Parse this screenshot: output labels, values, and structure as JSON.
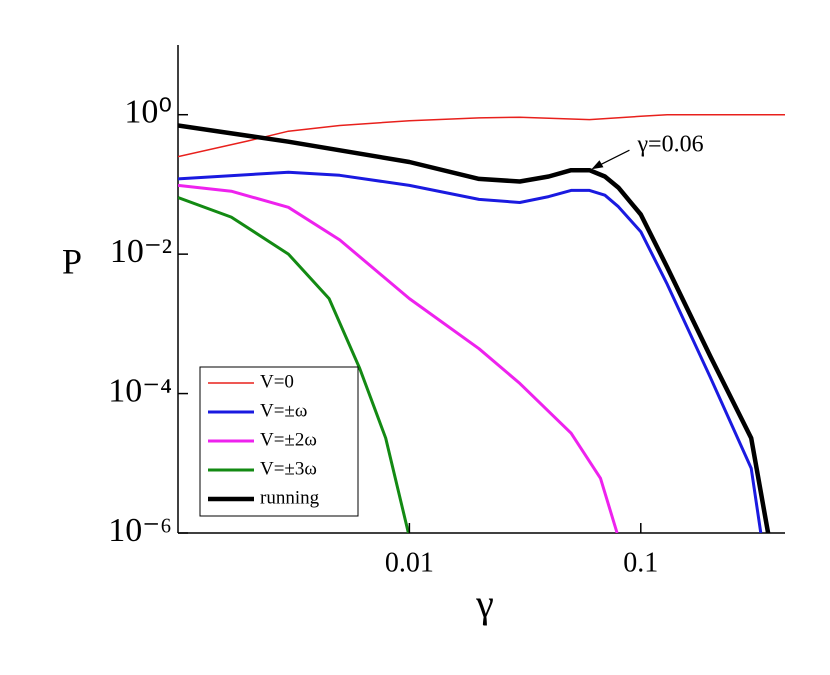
{
  "chart_data": {
    "type": "line",
    "x_label": "γ",
    "y_label": "P",
    "xscale": "log",
    "yscale": "log",
    "xlim": [
      0.001,
      0.42
    ],
    "ylim": [
      1e-06,
      10
    ],
    "xticks": [
      0.01,
      0.1
    ],
    "yticks": [
      {
        "value": 1,
        "label": "10⁰"
      },
      {
        "value": 0.01,
        "label": "10⁻²"
      },
      {
        "value": 0.0001,
        "label": "10⁻⁴"
      },
      {
        "value": 1e-06,
        "label": "10⁻⁶"
      }
    ],
    "legend": "lower left",
    "series": [
      {
        "name": "V=0",
        "color": "#e8201c",
        "width": 1.5,
        "x": [
          0.001,
          0.002,
          0.003,
          0.005,
          0.01,
          0.02,
          0.03,
          0.06,
          0.1,
          0.13,
          0.42
        ],
        "values": [
          0.25,
          0.42,
          0.58,
          0.7,
          0.82,
          0.9,
          0.92,
          0.85,
          0.95,
          1.0,
          1.0
        ]
      },
      {
        "name": "V=±ω",
        "color": "#1a1ae0",
        "width": 3,
        "x": [
          0.001,
          0.003,
          0.005,
          0.01,
          0.02,
          0.03,
          0.04,
          0.05,
          0.06,
          0.07,
          0.08,
          0.1,
          0.13,
          0.2,
          0.3,
          0.33
        ],
        "values": [
          0.12,
          0.15,
          0.135,
          0.097,
          0.061,
          0.055,
          0.067,
          0.082,
          0.082,
          0.07,
          0.048,
          0.021,
          0.0037,
          0.00017,
          8.5e-06,
          1e-06
        ]
      },
      {
        "name": "V=±2ω",
        "color": "#ee22ee",
        "width": 3,
        "x": [
          0.001,
          0.0017,
          0.003,
          0.005,
          0.01,
          0.02,
          0.03,
          0.05,
          0.067,
          0.079
        ],
        "values": [
          0.097,
          0.08,
          0.047,
          0.016,
          0.0023,
          0.00044,
          0.00014,
          2.7e-05,
          6.1e-06,
          1e-06
        ]
      },
      {
        "name": "V=±3ω",
        "color": "#138a13",
        "width": 3,
        "x": [
          0.001,
          0.0017,
          0.003,
          0.0045,
          0.0061,
          0.0079,
          0.0099
        ],
        "values": [
          0.065,
          0.034,
          0.01,
          0.0023,
          0.00023,
          2.3e-05,
          1e-06
        ]
      },
      {
        "name": "running",
        "color": "#000000",
        "width": 4.5,
        "x": [
          0.001,
          0.003,
          0.01,
          0.02,
          0.03,
          0.04,
          0.05,
          0.06,
          0.07,
          0.08,
          0.1,
          0.13,
          0.2,
          0.3,
          0.355
        ],
        "values": [
          0.7,
          0.41,
          0.21,
          0.12,
          0.11,
          0.13,
          0.16,
          0.16,
          0.13,
          0.09,
          0.037,
          0.0065,
          0.00034,
          2.3e-05,
          1e-06
        ]
      }
    ],
    "annotation": {
      "text": "γ=0.06",
      "x": 0.06,
      "y": 0.16
    }
  }
}
